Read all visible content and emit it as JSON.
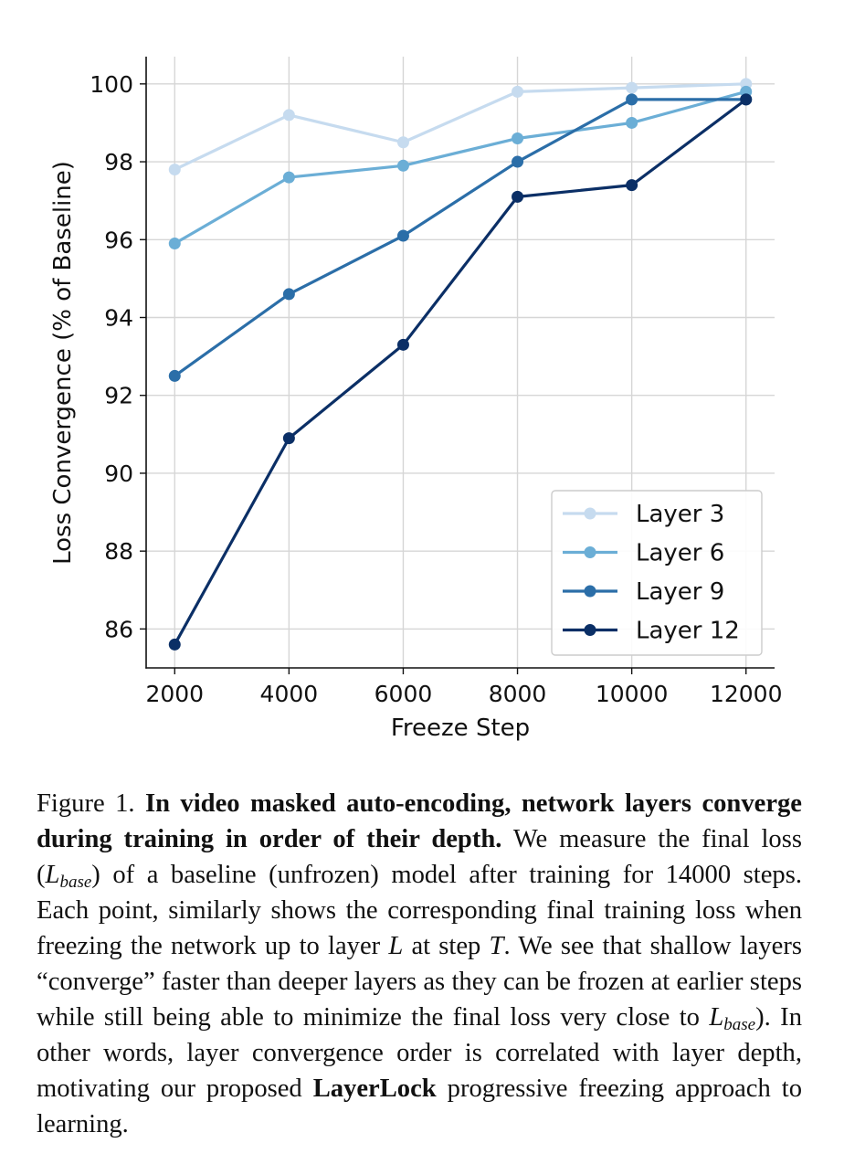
{
  "chart_data": {
    "type": "line",
    "xlabel": "Freeze Step",
    "ylabel": "Loss Convergence (% of Baseline)",
    "x": [
      2000,
      4000,
      6000,
      8000,
      10000,
      12000
    ],
    "xticks": [
      "2000",
      "4000",
      "6000",
      "8000",
      "10000",
      "12000"
    ],
    "yticks": [
      "86",
      "88",
      "90",
      "92",
      "94",
      "96",
      "98",
      "100"
    ],
    "xlim": [
      1500,
      12500
    ],
    "ylim": [
      85.0,
      100.7
    ],
    "grid": true,
    "legend_position": "lower-right",
    "series": [
      {
        "name": "Layer 3",
        "color": "#c6dbef",
        "values": [
          97.8,
          99.2,
          98.5,
          99.8,
          99.9,
          100.0
        ]
      },
      {
        "name": "Layer 6",
        "color": "#6baed6",
        "values": [
          95.9,
          97.6,
          97.9,
          98.6,
          99.0,
          99.8
        ]
      },
      {
        "name": "Layer 9",
        "color": "#2b6ea8",
        "values": [
          92.5,
          94.6,
          96.1,
          98.0,
          99.6,
          99.6
        ]
      },
      {
        "name": "Layer 12",
        "color": "#0b2f66",
        "values": [
          85.6,
          90.9,
          93.3,
          97.1,
          97.4,
          99.6
        ]
      }
    ]
  },
  "caption": {
    "label": "Figure 1.",
    "bold": "In video masked auto-encoding, network layers converge during training in order of their depth.",
    "part1": "We measure the final loss (",
    "sym_L": "L",
    "sym_base": "base",
    "part2": ") of a baseline (unfrozen) model after training for 14000 steps. Each point, similarly shows the corresponding final training loss when freezing the network up to layer ",
    "sym_layer": "L",
    "part3": " at step ",
    "sym_step": "T",
    "part4": ". We see that shallow layers “converge” faster than deeper layers as they can be frozen at earlier steps while still being able to minimize the final loss very close to ",
    "sym_L2": "L",
    "sym_base2": "base",
    "part5": "). In other words, layer convergence order is correlated with layer depth, motivating our proposed ",
    "method": "LayerLock",
    "part6": " progressive freezing approach to learning."
  }
}
